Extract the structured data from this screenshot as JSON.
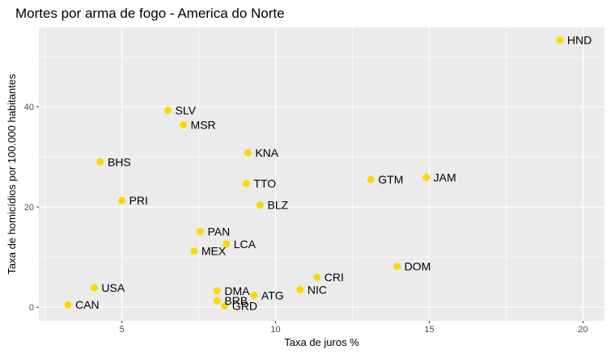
{
  "chart_data": {
    "type": "scatter",
    "title": "Mortes por arma de fogo - America do Norte",
    "xlabel": "Taxa de juros %",
    "ylabel": "Taxa de homicídios por 100.000 habitantes",
    "xlim": [
      2.3,
      20.7
    ],
    "ylim": [
      -2.7,
      55.8
    ],
    "x_ticks": [
      5,
      10,
      15,
      20
    ],
    "y_ticks": [
      0,
      20,
      40
    ],
    "grid": true,
    "point_color": "#FFD700",
    "panel_color": "#EBEBEB",
    "points": [
      {
        "label": "HND",
        "x": 19.25,
        "y": 53.3
      },
      {
        "label": "SLV",
        "x": 6.5,
        "y": 39.3
      },
      {
        "label": "MSR",
        "x": 7.0,
        "y": 36.4
      },
      {
        "label": "BHS",
        "x": 4.3,
        "y": 29.0
      },
      {
        "label": "KNA",
        "x": 9.1,
        "y": 30.8
      },
      {
        "label": "TTO",
        "x": 9.05,
        "y": 24.7
      },
      {
        "label": "GTM",
        "x": 13.1,
        "y": 25.5
      },
      {
        "label": "JAM",
        "x": 14.9,
        "y": 25.9
      },
      {
        "label": "PRI",
        "x": 5.0,
        "y": 21.3
      },
      {
        "label": "BLZ",
        "x": 9.5,
        "y": 20.4
      },
      {
        "label": "PAN",
        "x": 7.55,
        "y": 15.1
      },
      {
        "label": "LCA",
        "x": 8.4,
        "y": 12.6
      },
      {
        "label": "MEX",
        "x": 7.35,
        "y": 11.2
      },
      {
        "label": "DOM",
        "x": 13.95,
        "y": 8.2
      },
      {
        "label": "CRI",
        "x": 11.35,
        "y": 6.0
      },
      {
        "label": "USA",
        "x": 4.1,
        "y": 3.9
      },
      {
        "label": "DMA",
        "x": 8.1,
        "y": 3.3
      },
      {
        "label": "NIC",
        "x": 10.8,
        "y": 3.5
      },
      {
        "label": "ATG",
        "x": 9.3,
        "y": 2.4
      },
      {
        "label": "BRB",
        "x": 8.1,
        "y": 1.3
      },
      {
        "label": "GRD",
        "x": 8.35,
        "y": 0.3
      },
      {
        "label": "CAN",
        "x": 3.25,
        "y": 0.5
      }
    ]
  }
}
